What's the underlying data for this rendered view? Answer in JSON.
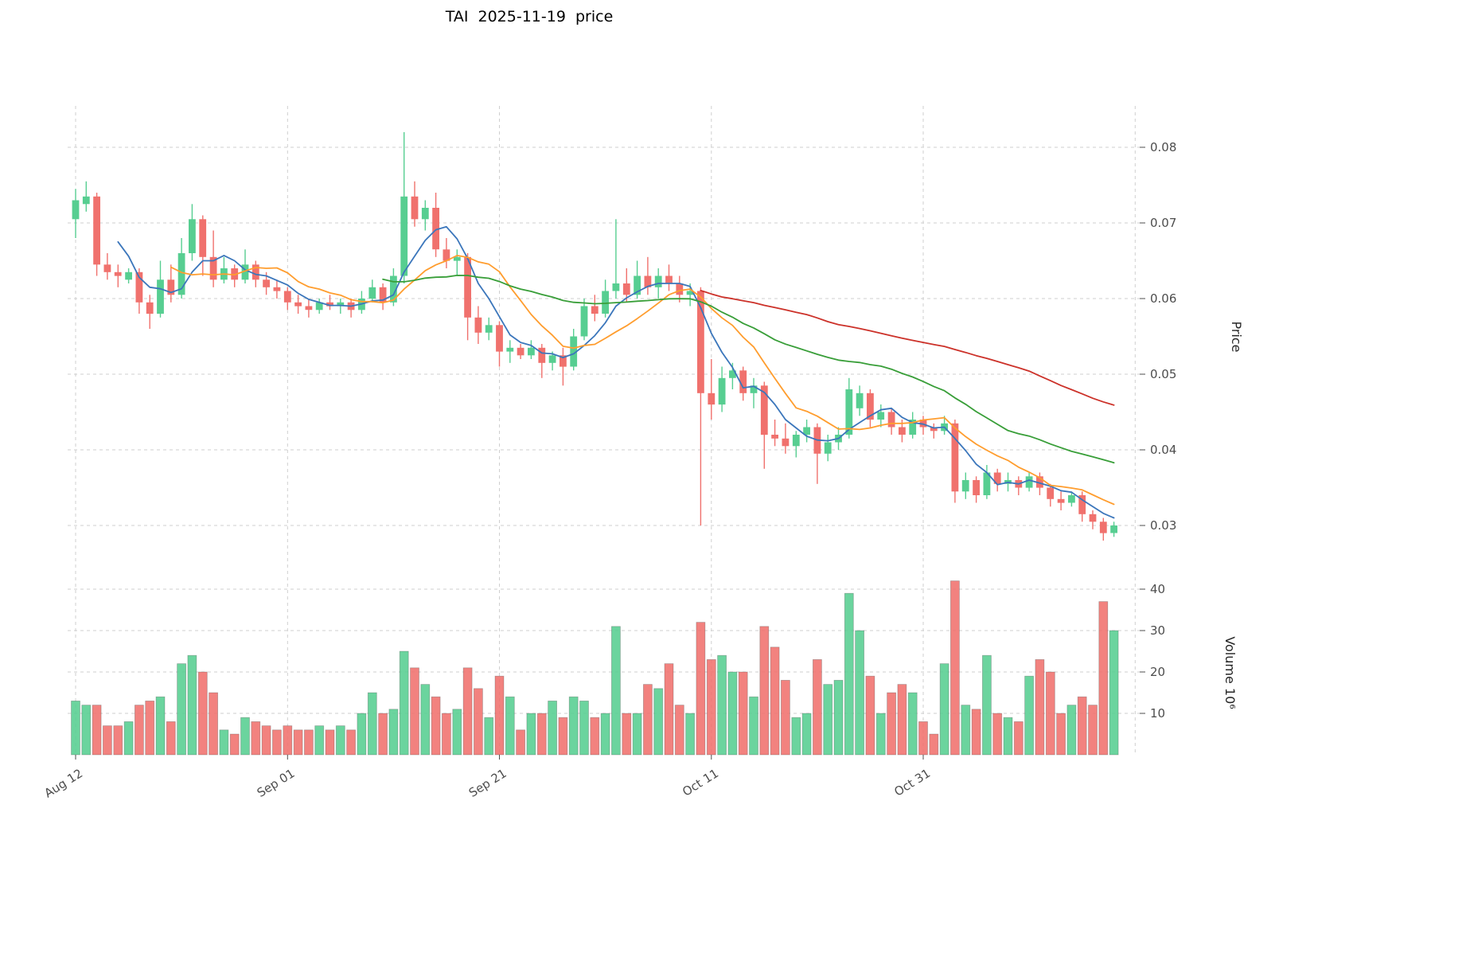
{
  "title": "TAI  2025-11-19  price",
  "axes": {
    "price_label": "Price",
    "volume_label": "Volume  10⁶",
    "price_ticks": [
      0.03,
      0.04,
      0.05,
      0.06,
      0.07,
      0.08
    ],
    "volume_ticks": [
      10,
      20,
      30,
      40
    ],
    "x_ticks": [
      {
        "index": 0,
        "label": "Aug 12"
      },
      {
        "index": 20,
        "label": "Sep 01"
      },
      {
        "index": 40,
        "label": "Sep 21"
      },
      {
        "index": 60,
        "label": "Oct 11"
      },
      {
        "index": 80,
        "label": "Oct 31"
      }
    ]
  },
  "chart_data": {
    "type": "candlestick",
    "symbol": "TAI",
    "as_of": "2025-11-19",
    "volume_unit": "10^6",
    "grid": true,
    "ylim_price": [
      0.0265,
      0.0855
    ],
    "ylim_volume": [
      0,
      44
    ],
    "colors": {
      "up": "#57ce91",
      "down": "#f0716d"
    },
    "moving_averages": [
      {
        "name": "MA5",
        "window": 5,
        "color": "#3b76bb"
      },
      {
        "name": "MA10",
        "window": 10,
        "color": "#ff9d2e"
      },
      {
        "name": "MA30",
        "window": 30,
        "color": "#389e38"
      },
      {
        "name": "MA60",
        "window": 60,
        "color": "#cc3129"
      }
    ],
    "dates": [
      "2025-08-12",
      "2025-08-13",
      "2025-08-14",
      "2025-08-15",
      "2025-08-16",
      "2025-08-17",
      "2025-08-18",
      "2025-08-19",
      "2025-08-20",
      "2025-08-21",
      "2025-08-22",
      "2025-08-23",
      "2025-08-24",
      "2025-08-25",
      "2025-08-26",
      "2025-08-27",
      "2025-08-28",
      "2025-08-29",
      "2025-08-30",
      "2025-08-31",
      "2025-09-01",
      "2025-09-02",
      "2025-09-03",
      "2025-09-04",
      "2025-09-05",
      "2025-09-06",
      "2025-09-07",
      "2025-09-08",
      "2025-09-09",
      "2025-09-10",
      "2025-09-11",
      "2025-09-12",
      "2025-09-13",
      "2025-09-14",
      "2025-09-15",
      "2025-09-16",
      "2025-09-17",
      "2025-09-18",
      "2025-09-19",
      "2025-09-20",
      "2025-09-21",
      "2025-09-22",
      "2025-09-23",
      "2025-09-24",
      "2025-09-25",
      "2025-09-26",
      "2025-09-27",
      "2025-09-28",
      "2025-09-29",
      "2025-09-30",
      "2025-10-01",
      "2025-10-02",
      "2025-10-03",
      "2025-10-04",
      "2025-10-05",
      "2025-10-06",
      "2025-10-07",
      "2025-10-08",
      "2025-10-09",
      "2025-10-10",
      "2025-10-11",
      "2025-10-12",
      "2025-10-13",
      "2025-10-14",
      "2025-10-15",
      "2025-10-16",
      "2025-10-17",
      "2025-10-18",
      "2025-10-19",
      "2025-10-20",
      "2025-10-21",
      "2025-10-22",
      "2025-10-23",
      "2025-10-24",
      "2025-10-25",
      "2025-10-26",
      "2025-10-27",
      "2025-10-28",
      "2025-10-29",
      "2025-10-30",
      "2025-10-31",
      "2025-11-01",
      "2025-11-02",
      "2025-11-03",
      "2025-11-04",
      "2025-11-05",
      "2025-11-06",
      "2025-11-07",
      "2025-11-08",
      "2025-11-09",
      "2025-11-10",
      "2025-11-11",
      "2025-11-12",
      "2025-11-13",
      "2025-11-14",
      "2025-11-15",
      "2025-11-16",
      "2025-11-17",
      "2025-11-18"
    ],
    "open": [
      0.0705,
      0.0725,
      0.0735,
      0.0645,
      0.0635,
      0.0625,
      0.0635,
      0.0595,
      0.058,
      0.0625,
      0.0605,
      0.066,
      0.0705,
      0.0655,
      0.0625,
      0.064,
      0.0625,
      0.0645,
      0.0625,
      0.0615,
      0.061,
      0.0595,
      0.059,
      0.0585,
      0.0595,
      0.059,
      0.0595,
      0.0585,
      0.06,
      0.0615,
      0.0595,
      0.063,
      0.0735,
      0.0705,
      0.072,
      0.0665,
      0.065,
      0.0655,
      0.0575,
      0.0555,
      0.0565,
      0.053,
      0.0535,
      0.0525,
      0.0535,
      0.0515,
      0.0525,
      0.051,
      0.055,
      0.059,
      0.058,
      0.061,
      0.062,
      0.0605,
      0.063,
      0.0615,
      0.063,
      0.062,
      0.0605,
      0.061,
      0.0475,
      0.046,
      0.0495,
      0.0505,
      0.0475,
      0.0485,
      0.042,
      0.0415,
      0.0405,
      0.042,
      0.043,
      0.0395,
      0.041,
      0.042,
      0.0455,
      0.0475,
      0.044,
      0.045,
      0.043,
      0.042,
      0.044,
      0.043,
      0.0425,
      0.0435,
      0.0345,
      0.036,
      0.034,
      0.037,
      0.0355,
      0.036,
      0.035,
      0.0365,
      0.035,
      0.0335,
      0.033,
      0.034,
      0.0315,
      0.0305,
      0.029
    ],
    "high": [
      0.0745,
      0.0755,
      0.074,
      0.066,
      0.0645,
      0.064,
      0.064,
      0.0605,
      0.065,
      0.0645,
      0.068,
      0.0725,
      0.071,
      0.069,
      0.0655,
      0.0645,
      0.0665,
      0.065,
      0.0635,
      0.0625,
      0.0615,
      0.0605,
      0.06,
      0.06,
      0.0605,
      0.06,
      0.06,
      0.061,
      0.0625,
      0.062,
      0.064,
      0.082,
      0.0755,
      0.073,
      0.074,
      0.068,
      0.0665,
      0.066,
      0.059,
      0.0575,
      0.057,
      0.0545,
      0.054,
      0.0545,
      0.054,
      0.053,
      0.0535,
      0.056,
      0.06,
      0.0605,
      0.0625,
      0.0705,
      0.064,
      0.065,
      0.0655,
      0.064,
      0.0645,
      0.063,
      0.062,
      0.0615,
      0.052,
      0.051,
      0.0515,
      0.051,
      0.0495,
      0.049,
      0.044,
      0.0435,
      0.0425,
      0.044,
      0.0435,
      0.042,
      0.043,
      0.0495,
      0.0485,
      0.048,
      0.046,
      0.0455,
      0.044,
      0.045,
      0.0445,
      0.0435,
      0.0445,
      0.044,
      0.037,
      0.0365,
      0.038,
      0.0375,
      0.037,
      0.0365,
      0.037,
      0.037,
      0.0355,
      0.0345,
      0.0345,
      0.0345,
      0.032,
      0.031,
      0.0305
    ],
    "low": [
      0.068,
      0.0715,
      0.063,
      0.0625,
      0.0615,
      0.062,
      0.058,
      0.056,
      0.0575,
      0.0595,
      0.06,
      0.065,
      0.063,
      0.0615,
      0.062,
      0.0615,
      0.062,
      0.0615,
      0.0605,
      0.06,
      0.0585,
      0.058,
      0.0575,
      0.058,
      0.0585,
      0.058,
      0.0575,
      0.058,
      0.0595,
      0.0585,
      0.059,
      0.062,
      0.0695,
      0.069,
      0.0655,
      0.064,
      0.063,
      0.0545,
      0.054,
      0.0545,
      0.051,
      0.0515,
      0.052,
      0.052,
      0.0495,
      0.0505,
      0.0485,
      0.0505,
      0.0545,
      0.057,
      0.0575,
      0.06,
      0.0595,
      0.06,
      0.0605,
      0.06,
      0.061,
      0.0595,
      0.059,
      0.03,
      0.044,
      0.045,
      0.048,
      0.0465,
      0.0455,
      0.0375,
      0.0405,
      0.0395,
      0.039,
      0.041,
      0.0355,
      0.0385,
      0.04,
      0.0415,
      0.0445,
      0.043,
      0.043,
      0.042,
      0.041,
      0.0415,
      0.042,
      0.0415,
      0.042,
      0.033,
      0.0335,
      0.033,
      0.0335,
      0.0345,
      0.0345,
      0.034,
      0.0345,
      0.034,
      0.0325,
      0.032,
      0.0325,
      0.0305,
      0.0295,
      0.028,
      0.0285
    ],
    "close": [
      0.073,
      0.0735,
      0.0645,
      0.0635,
      0.063,
      0.0635,
      0.0595,
      0.058,
      0.0625,
      0.0605,
      0.066,
      0.0705,
      0.0655,
      0.0625,
      0.064,
      0.0625,
      0.0645,
      0.0625,
      0.0615,
      0.061,
      0.0595,
      0.059,
      0.0585,
      0.0595,
      0.059,
      0.0595,
      0.0585,
      0.06,
      0.0615,
      0.0595,
      0.063,
      0.0735,
      0.0705,
      0.072,
      0.0665,
      0.065,
      0.0655,
      0.0575,
      0.0555,
      0.0565,
      0.053,
      0.0535,
      0.0525,
      0.0535,
      0.0515,
      0.0525,
      0.051,
      0.055,
      0.059,
      0.058,
      0.061,
      0.062,
      0.0605,
      0.063,
      0.0615,
      0.063,
      0.062,
      0.0605,
      0.061,
      0.0475,
      0.046,
      0.0495,
      0.0505,
      0.0475,
      0.0485,
      0.042,
      0.0415,
      0.0405,
      0.042,
      0.043,
      0.0395,
      0.041,
      0.042,
      0.048,
      0.0475,
      0.044,
      0.045,
      0.043,
      0.042,
      0.044,
      0.043,
      0.0425,
      0.0435,
      0.0345,
      0.036,
      0.034,
      0.037,
      0.0355,
      0.036,
      0.035,
      0.0365,
      0.035,
      0.0335,
      0.033,
      0.034,
      0.0315,
      0.0305,
      0.029,
      0.03
    ],
    "volume": [
      13,
      12,
      12,
      7,
      7,
      8,
      12,
      13,
      14,
      8,
      22,
      24,
      20,
      15,
      6,
      5,
      9,
      8,
      7,
      6,
      7,
      6,
      6,
      7,
      6,
      7,
      6,
      10,
      15,
      10,
      11,
      25,
      21,
      17,
      14,
      10,
      11,
      21,
      16,
      9,
      19,
      14,
      6,
      10,
      10,
      13,
      9,
      14,
      13,
      9,
      10,
      31,
      10,
      10,
      17,
      16,
      22,
      12,
      10,
      32,
      23,
      24,
      20,
      20,
      14,
      31,
      26,
      18,
      9,
      10,
      23,
      17,
      18,
      39,
      30,
      19,
      10,
      15,
      17,
      15,
      8,
      5,
      22,
      42,
      12,
      11,
      24,
      10,
      9,
      8,
      19,
      23,
      20,
      10,
      12,
      14,
      12,
      37,
      30
    ]
  }
}
